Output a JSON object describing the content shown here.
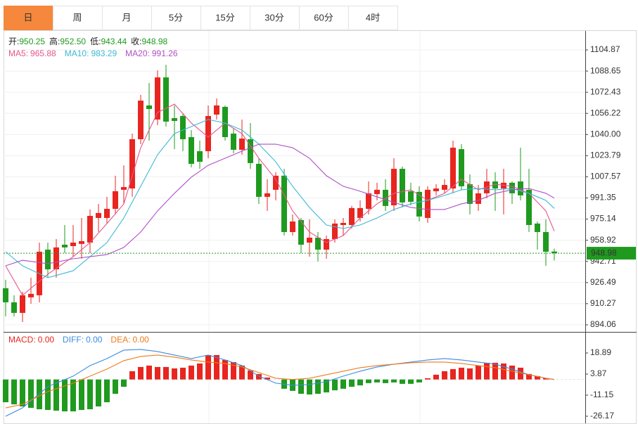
{
  "tabs": {
    "items": [
      "日",
      "周",
      "月",
      "5分",
      "15分",
      "30分",
      "60分",
      "4时"
    ],
    "active": 0
  },
  "chart_data": [
    {
      "type": "candlestick",
      "up_color": "#e8251f",
      "down_color": "#1f9a1f",
      "grid": true,
      "ylim": [
        889.7,
        1118.9
      ],
      "yticks": [
        1104.87,
        1088.65,
        1072.43,
        1056.22,
        {
          "value": 1040,
          "label": "1040.00"
        },
        1023.79,
        1007.57,
        991.35,
        975.14,
        958.92,
        942.71,
        926.49,
        910.27,
        894.06
      ],
      "info": {
        "labels": [
          "开:",
          "高:",
          "低:",
          "收:"
        ],
        "value_labels": [
          "950.25",
          "952.50",
          "943.44",
          "948.98"
        ]
      },
      "legend_separator": ":",
      "open": [
        922.1,
        911.3,
        903.2,
        915.1,
        916.7,
        951.7,
        936.6,
        955.5,
        954.4,
        956.1,
        957.1,
        976.0,
        976.0,
        983.0,
        997.6,
        998.6,
        1036.4,
        1062.3,
        1051.5,
        1083.8,
        1052.6,
        1054.2,
        1038.0,
        1027.2,
        1027.2,
        1055.3,
        1061.2,
        1040.7,
        1028.3,
        1036.4,
        1017.5,
        992.2,
        997.6,
        1008.4,
        965.2,
        974.4,
        957.1,
        960.9,
        951.7,
        959.8,
        970.6,
        970.6,
        976.0,
        983.0,
        994.3,
        997.6,
        985.7,
        1013.7,
        996.5,
        996.0,
        976.0,
        996.5,
        997.6,
        998.6,
        1028.8,
        1001.9,
        986.8,
        994.9,
        1004.0,
        998.6,
        1003.0,
        1004.0,
        997.6,
        971.7,
        965.2,
        950.25
      ],
      "high": [
        928.6,
        916.7,
        919.4,
        930.2,
        957.1,
        957.1,
        959.8,
        970.6,
        970.6,
        976.0,
        982.5,
        986.8,
        992.2,
        1008.4,
        1016.4,
        1040.7,
        1070.4,
        1079.5,
        1089.2,
        1093.5,
        1062.3,
        1055.8,
        1043.4,
        1035.3,
        1062.3,
        1067.7,
        1062.3,
        1045.0,
        1051.5,
        1048.8,
        1021.8,
        1005.7,
        1011.1,
        1013.7,
        978.7,
        976.0,
        974.9,
        965.2,
        962.5,
        974.9,
        976.0,
        985.2,
        989.5,
        1004.0,
        1003.0,
        1005.7,
        1021.8,
        1015.4,
        1003.0,
        1000.3,
        1000.3,
        1001.9,
        1005.7,
        1035.3,
        1032.6,
        1009.4,
        1001.3,
        1013.7,
        1011.1,
        1013.7,
        1004.0,
        1029.9,
        1013.7,
        973.3,
        974.9,
        952.5
      ],
      "low": [
        900.5,
        900.5,
        896.2,
        910.2,
        911.3,
        930.2,
        930.2,
        949.0,
        946.3,
        944.7,
        949.0,
        965.2,
        971.7,
        978.7,
        986.8,
        992.2,
        1032.6,
        1035.3,
        1047.2,
        1046.1,
        1028.8,
        1027.2,
        1014.8,
        1013.7,
        1021.8,
        1051.5,
        1035.3,
        1025.6,
        1024.5,
        1013.7,
        986.8,
        981.4,
        989.5,
        962.5,
        962.5,
        949.0,
        946.3,
        942.6,
        944.7,
        957.1,
        962.5,
        967.9,
        973.3,
        978.7,
        989.5,
        981.4,
        981.4,
        984.1,
        985.7,
        973.3,
        972.2,
        993.3,
        994.9,
        994.9,
        997.6,
        978.7,
        981.4,
        991.1,
        981.4,
        978.7,
        986.8,
        989.5,
        965.2,
        951.7,
        939.3,
        943.44
      ],
      "close": [
        911.3,
        903.2,
        916.7,
        917.8,
        950.1,
        936.6,
        953.4,
        953.4,
        957.1,
        958.2,
        977.6,
        979.8,
        983.0,
        996.5,
        999.7,
        1036.4,
        1066.0,
        1059.6,
        1083.8,
        1049.9,
        1050.4,
        1036.4,
        1017.5,
        1019.1,
        1054.2,
        1062.3,
        1038.0,
        1028.3,
        1036.9,
        1018.1,
        992.2,
        994.9,
        1008.4,
        965.2,
        973.3,
        955.5,
        960.9,
        951.7,
        959.8,
        971.7,
        972.2,
        983.6,
        983.6,
        994.9,
        997.6,
        985.2,
        1013.7,
        987.9,
        988.4,
        977.1,
        997.6,
        998.6,
        1001.3,
        1029.9,
        1000.3,
        986.8,
        994.9,
        1004.0,
        998.6,
        1003.0,
        994.9,
        993.3,
        970.6,
        965.2,
        950.1,
        948.98
      ],
      "series": [
        {
          "name": "MA5",
          "color": "#e8558c",
          "x": [
            0,
            2,
            5,
            8,
            10,
            12,
            14,
            16,
            18,
            20,
            22,
            24,
            26,
            28,
            30,
            32,
            34,
            36,
            38,
            40,
            42,
            44,
            46,
            48,
            50,
            52,
            54,
            56,
            58,
            60,
            62,
            64,
            65
          ],
          "values": [
            939.3,
            916.7,
            932.9,
            946.3,
            957.1,
            971.7,
            986.8,
            1029.9,
            1056.9,
            1063.3,
            1048.8,
            1038.0,
            1048.8,
            1040.7,
            1021.8,
            1005.7,
            981.4,
            965.2,
            957.1,
            962.5,
            976.0,
            986.8,
            994.9,
            997.6,
            989.5,
            994.9,
            1005.7,
            997.6,
            1001.9,
            1000.3,
            994.9,
            981.4,
            965.88
          ]
        },
        {
          "name": "MA10",
          "color": "#3cb9d6",
          "x": [
            0,
            2,
            5,
            8,
            10,
            12,
            14,
            16,
            18,
            20,
            22,
            24,
            26,
            28,
            30,
            32,
            34,
            36,
            38,
            40,
            42,
            44,
            46,
            48,
            50,
            52,
            54,
            56,
            58,
            60,
            62,
            64,
            65
          ],
          "values": [
            950.1,
            939.3,
            930.2,
            935.5,
            946.3,
            957.1,
            976.0,
            1000.3,
            1024.5,
            1040.7,
            1046.1,
            1051.5,
            1048.8,
            1043.4,
            1032.6,
            1019.1,
            1000.3,
            984.1,
            970.6,
            967.9,
            970.6,
            976.0,
            982.5,
            986.8,
            989.5,
            993.3,
            997.6,
            998.6,
            997.6,
            998.6,
            994.9,
            989.5,
            983.29
          ]
        },
        {
          "name": "MA20",
          "color": "#b04fc6",
          "x": [
            0,
            2,
            5,
            8,
            10,
            12,
            14,
            16,
            18,
            20,
            22,
            24,
            26,
            28,
            30,
            32,
            34,
            36,
            38,
            40,
            42,
            44,
            46,
            48,
            50,
            52,
            54,
            56,
            58,
            60,
            62,
            64,
            65
          ],
          "values": [
            939.3,
            943.6,
            940.9,
            944.7,
            946.3,
            947.9,
            953.4,
            965.2,
            981.4,
            994.9,
            1007.3,
            1016.4,
            1021.8,
            1027.2,
            1032.6,
            1032.6,
            1029.9,
            1021.8,
            1008.4,
            1000.3,
            996.5,
            992.2,
            987.9,
            984.1,
            982.5,
            982.5,
            986.8,
            989.5,
            994.9,
            997.6,
            998.6,
            994.9,
            991.26
          ]
        }
      ]
    },
    {
      "type": "macd",
      "up_color": "#e8251f",
      "down_color": "#1f9a1f",
      "ylim": [
        -31.7,
        32.4
      ],
      "yticks": [
        18.89,
        3.87,
        -11.15,
        -26.17
      ],
      "legend_separator": ":",
      "series": [
        {
          "name": "MACD",
          "color": "#e8251f",
          "current_label": "0.00",
          "values": [
            -16.2,
            -17.7,
            -19.2,
            -20.2,
            -21.2,
            -21.7,
            -22.2,
            -22.7,
            -22.7,
            -21.7,
            -21.2,
            -19.2,
            -16.2,
            -10.2,
            -5.2,
            5.9,
            8.9,
            9.9,
            8.9,
            8.9,
            7.9,
            8.4,
            9.9,
            11.4,
            17.4,
            17.4,
            13.9,
            12.4,
            9.9,
            6.4,
            3.9,
            1.4,
            0,
            -6.6,
            -8.1,
            -10.2,
            -10.7,
            -10.2,
            -9.2,
            -7.7,
            -6.6,
            -5.2,
            -4.2,
            -2.6,
            -2.1,
            -2.6,
            -2.1,
            -3.1,
            -3.1,
            -2.1,
            0.9,
            3.4,
            5.9,
            7.4,
            8.4,
            7.9,
            9.9,
            11.9,
            11.9,
            11.4,
            9.9,
            8.4,
            3.9,
            2.4,
            0.9,
            0
          ]
        },
        {
          "name": "DIFF",
          "color": "#3c8ce0",
          "current_label": "0.00",
          "x": [
            0,
            2,
            5,
            8,
            10,
            12,
            14,
            16,
            18,
            20,
            22,
            24,
            26,
            28,
            30,
            32,
            34,
            36,
            38,
            40,
            42,
            44,
            46,
            48,
            50,
            52,
            54,
            56,
            58,
            60,
            62,
            64,
            65
          ],
          "values": [
            -26.2,
            -20.2,
            -5.1,
            2.4,
            9.9,
            14.9,
            20.9,
            21.4,
            19.9,
            17.4,
            14.9,
            17.4,
            13.9,
            9.9,
            2.4,
            -2.6,
            -4.1,
            -3.6,
            -1.6,
            2.4,
            5.9,
            8.9,
            10.9,
            12.4,
            13.9,
            14.9,
            13.9,
            12.4,
            10.9,
            7.4,
            3.4,
            0.9,
            0
          ]
        },
        {
          "name": "DEA",
          "color": "#f07a1e",
          "current_label": "0.00",
          "x": [
            0,
            2,
            5,
            8,
            10,
            12,
            14,
            16,
            18,
            20,
            22,
            24,
            26,
            28,
            30,
            32,
            34,
            36,
            38,
            40,
            42,
            44,
            46,
            48,
            50,
            52,
            54,
            56,
            58,
            60,
            62,
            64,
            65
          ],
          "values": [
            -20.2,
            -17.7,
            -8.6,
            -2.6,
            2.4,
            7.4,
            13.4,
            16.4,
            17.4,
            15.9,
            13.9,
            12.4,
            11.4,
            8.9,
            4.9,
            0.9,
            0,
            0.9,
            3.4,
            5.9,
            8.4,
            9.9,
            10.9,
            11.9,
            12.4,
            12.4,
            11.4,
            9.9,
            8.4,
            5.9,
            3.4,
            0.9,
            0
          ]
        }
      ]
    }
  ]
}
